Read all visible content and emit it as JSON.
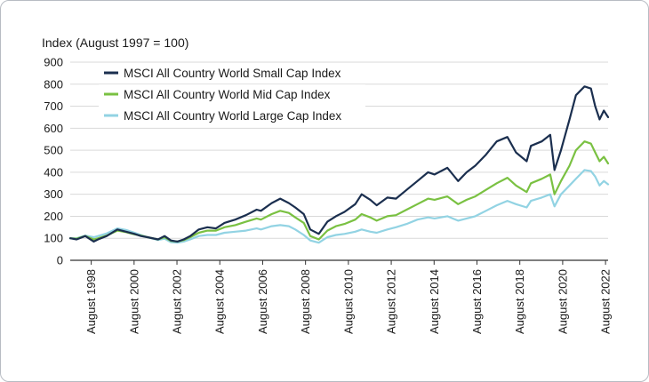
{
  "chart_data": {
    "type": "line",
    "title": "",
    "ylabel": "Index (August 1997 = 100)",
    "xlabel": "",
    "ylim": [
      0,
      900
    ],
    "xlim": [
      1997.6,
      2022.7
    ],
    "grid": "horizontal",
    "legend_position": "top-left",
    "y_ticks": [
      0,
      100,
      200,
      300,
      400,
      500,
      600,
      700,
      800,
      900
    ],
    "y_tick_labels": [
      "0",
      "100",
      "200",
      "300",
      "400",
      "500",
      "600",
      "700",
      "800",
      "900"
    ],
    "x_ticks": [
      1998.58,
      2000.58,
      2002.58,
      2004.58,
      2006.58,
      2008.58,
      2010.58,
      2012.58,
      2014.58,
      2016.58,
      2018.58,
      2020.58,
      2022.58
    ],
    "x_tick_labels": [
      "August 1998",
      "August 2000",
      "August 2002",
      "August 2004",
      "August 2006",
      "August 2008",
      "August 2010",
      "August 2012",
      "August 2014",
      "August 2016",
      "August 2018",
      "August 2020",
      "August 2022"
    ],
    "series": [
      {
        "name": "MSCI All Country World Small Cap Index",
        "color": "#1b2f4f",
        "x": [
          1997.6,
          1997.9,
          1998.3,
          1998.7,
          1998.9,
          1999.3,
          1999.8,
          2000.2,
          2000.6,
          2000.9,
          2001.2,
          2001.7,
          2002.0,
          2002.3,
          2002.6,
          2002.9,
          2003.2,
          2003.6,
          2004.0,
          2004.4,
          2004.8,
          2005.3,
          2005.8,
          2006.3,
          2006.5,
          2007.0,
          2007.4,
          2007.8,
          2008.1,
          2008.5,
          2008.8,
          2009.2,
          2009.6,
          2010.0,
          2010.4,
          2010.9,
          2011.2,
          2011.6,
          2011.9,
          2012.4,
          2012.8,
          2013.3,
          2013.8,
          2014.3,
          2014.6,
          2015.2,
          2015.7,
          2016.1,
          2016.5,
          2017.0,
          2017.5,
          2018.0,
          2018.4,
          2018.9,
          2019.1,
          2019.6,
          2020.0,
          2020.2,
          2020.5,
          2020.9,
          2021.2,
          2021.6,
          2021.9,
          2022.1,
          2022.3,
          2022.5,
          2022.7
        ],
        "values": [
          100,
          95,
          110,
          85,
          95,
          110,
          140,
          130,
          120,
          110,
          105,
          95,
          110,
          90,
          85,
          95,
          110,
          140,
          150,
          145,
          170,
          185,
          205,
          230,
          225,
          260,
          280,
          260,
          240,
          210,
          140,
          120,
          175,
          200,
          220,
          255,
          300,
          275,
          250,
          285,
          280,
          320,
          360,
          400,
          390,
          420,
          360,
          400,
          430,
          480,
          540,
          560,
          490,
          450,
          520,
          540,
          570,
          410,
          500,
          640,
          750,
          790,
          780,
          700,
          640,
          680,
          650
        ]
      },
      {
        "name": "MSCI All Country World Mid Cap Index",
        "color": "#7ac142",
        "x": [
          1997.6,
          1997.9,
          1998.3,
          1998.7,
          1998.9,
          1999.3,
          1999.8,
          2000.2,
          2000.6,
          2000.9,
          2001.2,
          2001.7,
          2002.0,
          2002.3,
          2002.6,
          2002.9,
          2003.2,
          2003.6,
          2004.0,
          2004.4,
          2004.8,
          2005.3,
          2005.8,
          2006.3,
          2006.5,
          2007.0,
          2007.4,
          2007.8,
          2008.1,
          2008.5,
          2008.8,
          2009.2,
          2009.6,
          2010.0,
          2010.4,
          2010.9,
          2011.2,
          2011.6,
          2011.9,
          2012.4,
          2012.8,
          2013.3,
          2013.8,
          2014.3,
          2014.6,
          2015.2,
          2015.7,
          2016.1,
          2016.5,
          2017.0,
          2017.5,
          2018.0,
          2018.4,
          2018.9,
          2019.1,
          2019.6,
          2020.0,
          2020.2,
          2020.5,
          2020.9,
          2021.2,
          2021.6,
          2021.9,
          2022.1,
          2022.3,
          2022.5,
          2022.7
        ],
        "values": [
          100,
          98,
          110,
          95,
          100,
          112,
          135,
          128,
          118,
          112,
          105,
          95,
          105,
          88,
          85,
          92,
          105,
          125,
          135,
          135,
          150,
          160,
          175,
          190,
          185,
          210,
          225,
          215,
          195,
          170,
          110,
          95,
          135,
          155,
          165,
          185,
          210,
          195,
          180,
          200,
          205,
          230,
          255,
          280,
          275,
          290,
          255,
          275,
          290,
          320,
          350,
          375,
          340,
          310,
          350,
          370,
          390,
          300,
          360,
          430,
          500,
          540,
          530,
          490,
          450,
          470,
          440
        ]
      },
      {
        "name": "MSCI All Country World Large Cap Index",
        "color": "#92d3e3",
        "x": [
          1997.6,
          1997.9,
          1998.3,
          1998.7,
          1998.9,
          1999.3,
          1999.8,
          2000.2,
          2000.6,
          2000.9,
          2001.2,
          2001.7,
          2002.0,
          2002.3,
          2002.6,
          2002.9,
          2003.2,
          2003.6,
          2004.0,
          2004.4,
          2004.8,
          2005.3,
          2005.8,
          2006.3,
          2006.5,
          2007.0,
          2007.4,
          2007.8,
          2008.1,
          2008.5,
          2008.8,
          2009.2,
          2009.6,
          2010.0,
          2010.4,
          2010.9,
          2011.2,
          2011.6,
          2011.9,
          2012.4,
          2012.8,
          2013.3,
          2013.8,
          2014.3,
          2014.6,
          2015.2,
          2015.7,
          2016.1,
          2016.5,
          2017.0,
          2017.5,
          2018.0,
          2018.4,
          2018.9,
          2019.1,
          2019.6,
          2020.0,
          2020.2,
          2020.5,
          2020.9,
          2021.2,
          2021.6,
          2021.9,
          2022.1,
          2022.3,
          2022.5,
          2022.7
        ],
        "values": [
          100,
          100,
          112,
          105,
          110,
          122,
          145,
          138,
          125,
          115,
          105,
          92,
          98,
          82,
          80,
          85,
          95,
          110,
          115,
          115,
          125,
          130,
          135,
          145,
          140,
          155,
          160,
          155,
          140,
          115,
          90,
          80,
          105,
          115,
          120,
          130,
          140,
          130,
          125,
          140,
          150,
          165,
          185,
          195,
          190,
          200,
          180,
          190,
          200,
          225,
          250,
          270,
          255,
          240,
          270,
          285,
          300,
          245,
          300,
          340,
          370,
          410,
          405,
          380,
          340,
          360,
          345
        ]
      }
    ]
  }
}
